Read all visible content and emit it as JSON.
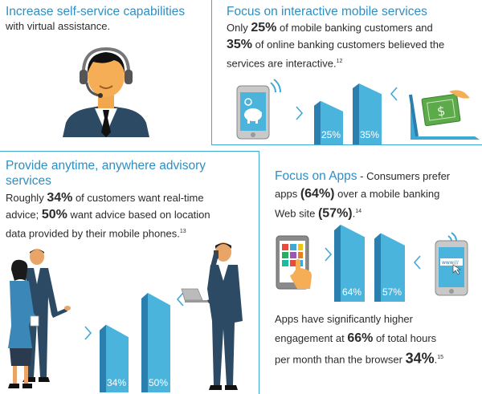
{
  "colors": {
    "accent": "#3fa9d6",
    "heading": "#2d8fc4",
    "bar_front": "#4bb4dd",
    "bar_side": "#2b7fae",
    "text": "#2b2b2b"
  },
  "panel1": {
    "title": "Increase self-service capabilities",
    "line1": "with virtual assistance.",
    "icon": "call-center-agent-icon"
  },
  "panel2": {
    "title": "Focus on interactive mobile services",
    "t1": "Only ",
    "s1": "25%",
    "t2": " of mobile banking customers and",
    "s2": "35%",
    "t3": " of online banking customers believed the",
    "t4": "services are interactive.",
    "ref": "12",
    "bars": {
      "values": [
        25,
        35
      ],
      "labels": [
        "25%",
        "35%"
      ]
    },
    "left_icon": "mobile-piggy-bank-icon",
    "right_icon": "laptop-money-icon"
  },
  "panel3": {
    "title_line1": "Provide anytime, anywhere advisory",
    "title_line2": "services",
    "t1": "Roughly ",
    "s1": "34%",
    "t2": " of customers want real-time",
    "t3": "advice; ",
    "s2": "50%",
    "t4": " want advice based on location",
    "t5": "data provided by their mobile phones.",
    "ref": "13",
    "bars": {
      "values": [
        34,
        50
      ],
      "labels": [
        "34%",
        "50%"
      ]
    },
    "left_icon": "business-people-icon",
    "right_icon": "businessman-laptop-phone-icon"
  },
  "panel4": {
    "title": "Focus on Apps",
    "t1": " - Consumers prefer",
    "t2": "apps ",
    "s1": "(64%)",
    "t3": " over a mobile banking",
    "t4": "Web site ",
    "s2": "(57%)",
    "t5": ".",
    "ref": "14",
    "bars": {
      "values": [
        64,
        57
      ],
      "labels": [
        "64%",
        "57%"
      ]
    },
    "left_icon": "tablet-apps-icon",
    "right_icon": "phone-browser-icon",
    "browser_text": "www///",
    "e1": "Apps have significantly higher",
    "e2": "engagement at ",
    "e_s1": "66%",
    "e3": " of total hours",
    "e4": "per month than the browser ",
    "e_s2": "34%",
    "e5": ".",
    "e_ref": "15"
  }
}
